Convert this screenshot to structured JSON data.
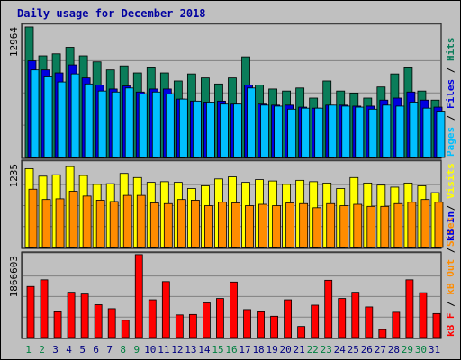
{
  "title": "Daily usage for December 2018",
  "chart_data": [
    {
      "type": "bar",
      "panel": "top",
      "max_label": "12964",
      "ylim": [
        0,
        12964
      ],
      "grid": true,
      "x": [
        1,
        2,
        3,
        4,
        5,
        6,
        7,
        8,
        9,
        10,
        11,
        12,
        13,
        14,
        15,
        16,
        17,
        18,
        19,
        20,
        21,
        22,
        23,
        24,
        25,
        26,
        27,
        28,
        29,
        30,
        31
      ],
      "series": [
        {
          "name": "Hits",
          "color": "#0a7d5a",
          "values": [
            12964,
            10100,
            10300,
            10950,
            10100,
            9500,
            8700,
            9100,
            8400,
            8900,
            8400,
            7600,
            8300,
            7900,
            7300,
            7900,
            10000,
            7200,
            6800,
            6600,
            6900,
            5900,
            7600,
            6600,
            6400,
            5900,
            7000,
            8300,
            8900,
            6600,
            5700
          ]
        },
        {
          "name": "Files",
          "color": "#0000e0",
          "values": [
            9600,
            8700,
            8400,
            9200,
            7900,
            7200,
            6800,
            7100,
            6500,
            6800,
            6800,
            5800,
            5600,
            5500,
            5600,
            5300,
            7200,
            5300,
            5200,
            5200,
            5000,
            4900,
            5200,
            5200,
            5100,
            5100,
            5700,
            5900,
            6500,
            5700,
            5000
          ]
        },
        {
          "name": "Pages",
          "color": "#00bfff",
          "values": [
            8700,
            8000,
            7500,
            8300,
            7300,
            6600,
            6500,
            6900,
            6300,
            6500,
            6300,
            5800,
            5600,
            5500,
            5300,
            5300,
            6900,
            5200,
            5100,
            4800,
            4900,
            4900,
            5200,
            5100,
            5000,
            4800,
            5200,
            5100,
            5500,
            4900,
            4600
          ]
        }
      ],
      "legend": [
        "Pages",
        "Files",
        "Hits"
      ]
    },
    {
      "type": "bar",
      "panel": "middle",
      "max_label": "1235",
      "ylim": [
        0,
        1235
      ],
      "grid": true,
      "x": [
        1,
        2,
        3,
        4,
        5,
        6,
        7,
        8,
        9,
        10,
        11,
        12,
        13,
        14,
        15,
        16,
        17,
        18,
        19,
        20,
        21,
        22,
        23,
        24,
        25,
        26,
        27,
        28,
        29,
        30,
        31
      ],
      "series": [
        {
          "name": "Visits",
          "color": "#ffff00",
          "values": [
            1150,
            1040,
            1060,
            1180,
            1050,
            920,
            930,
            1080,
            1020,
            950,
            960,
            950,
            860,
            900,
            1000,
            1030,
            950,
            990,
            970,
            920,
            980,
            960,
            940,
            860,
            1020,
            940,
            910,
            880,
            940,
            900,
            800
          ]
        },
        {
          "name": "Sites",
          "color": "#ff8c00",
          "values": [
            850,
            700,
            710,
            820,
            750,
            690,
            670,
            760,
            760,
            650,
            640,
            700,
            690,
            610,
            660,
            650,
            610,
            630,
            610,
            650,
            640,
            580,
            640,
            610,
            630,
            600,
            600,
            640,
            660,
            700,
            660
          ]
        }
      ],
      "legend": [
        "Sites",
        "Visits"
      ]
    },
    {
      "type": "bar",
      "panel": "bottom",
      "max_label": "1866603",
      "ylim": [
        0,
        1866603
      ],
      "grid": true,
      "x": [
        1,
        2,
        3,
        4,
        5,
        6,
        7,
        8,
        9,
        10,
        11,
        12,
        13,
        14,
        15,
        16,
        17,
        18,
        19,
        20,
        21,
        22,
        23,
        24,
        25,
        26,
        27,
        28,
        29,
        30,
        31
      ],
      "series": [
        {
          "name": "kB F",
          "color": "#ff0000",
          "values": [
            1150000,
            1300000,
            580000,
            1020000,
            980000,
            740000,
            650000,
            390000,
            1866603,
            850000,
            1260000,
            510000,
            520000,
            780000,
            880000,
            1250000,
            630000,
            580000,
            480000,
            850000,
            250000,
            730000,
            1290000,
            880000,
            1020000,
            690000,
            180000,
            570000,
            1300000,
            1010000,
            540000
          ]
        }
      ],
      "legend": [
        "kB F",
        "kB Out",
        "kB In"
      ],
      "legend_colors": [
        "#ff0000",
        "#ff8c00",
        "#0000e0"
      ]
    }
  ],
  "colors": {
    "background": "#c0c0c0",
    "frame": "#000000",
    "title": "#0000a0",
    "tick_default": "#000080",
    "tick_weekend": "#008040"
  },
  "weekend_days": [
    1,
    2,
    8,
    9,
    15,
    16,
    22,
    23,
    29,
    30
  ]
}
